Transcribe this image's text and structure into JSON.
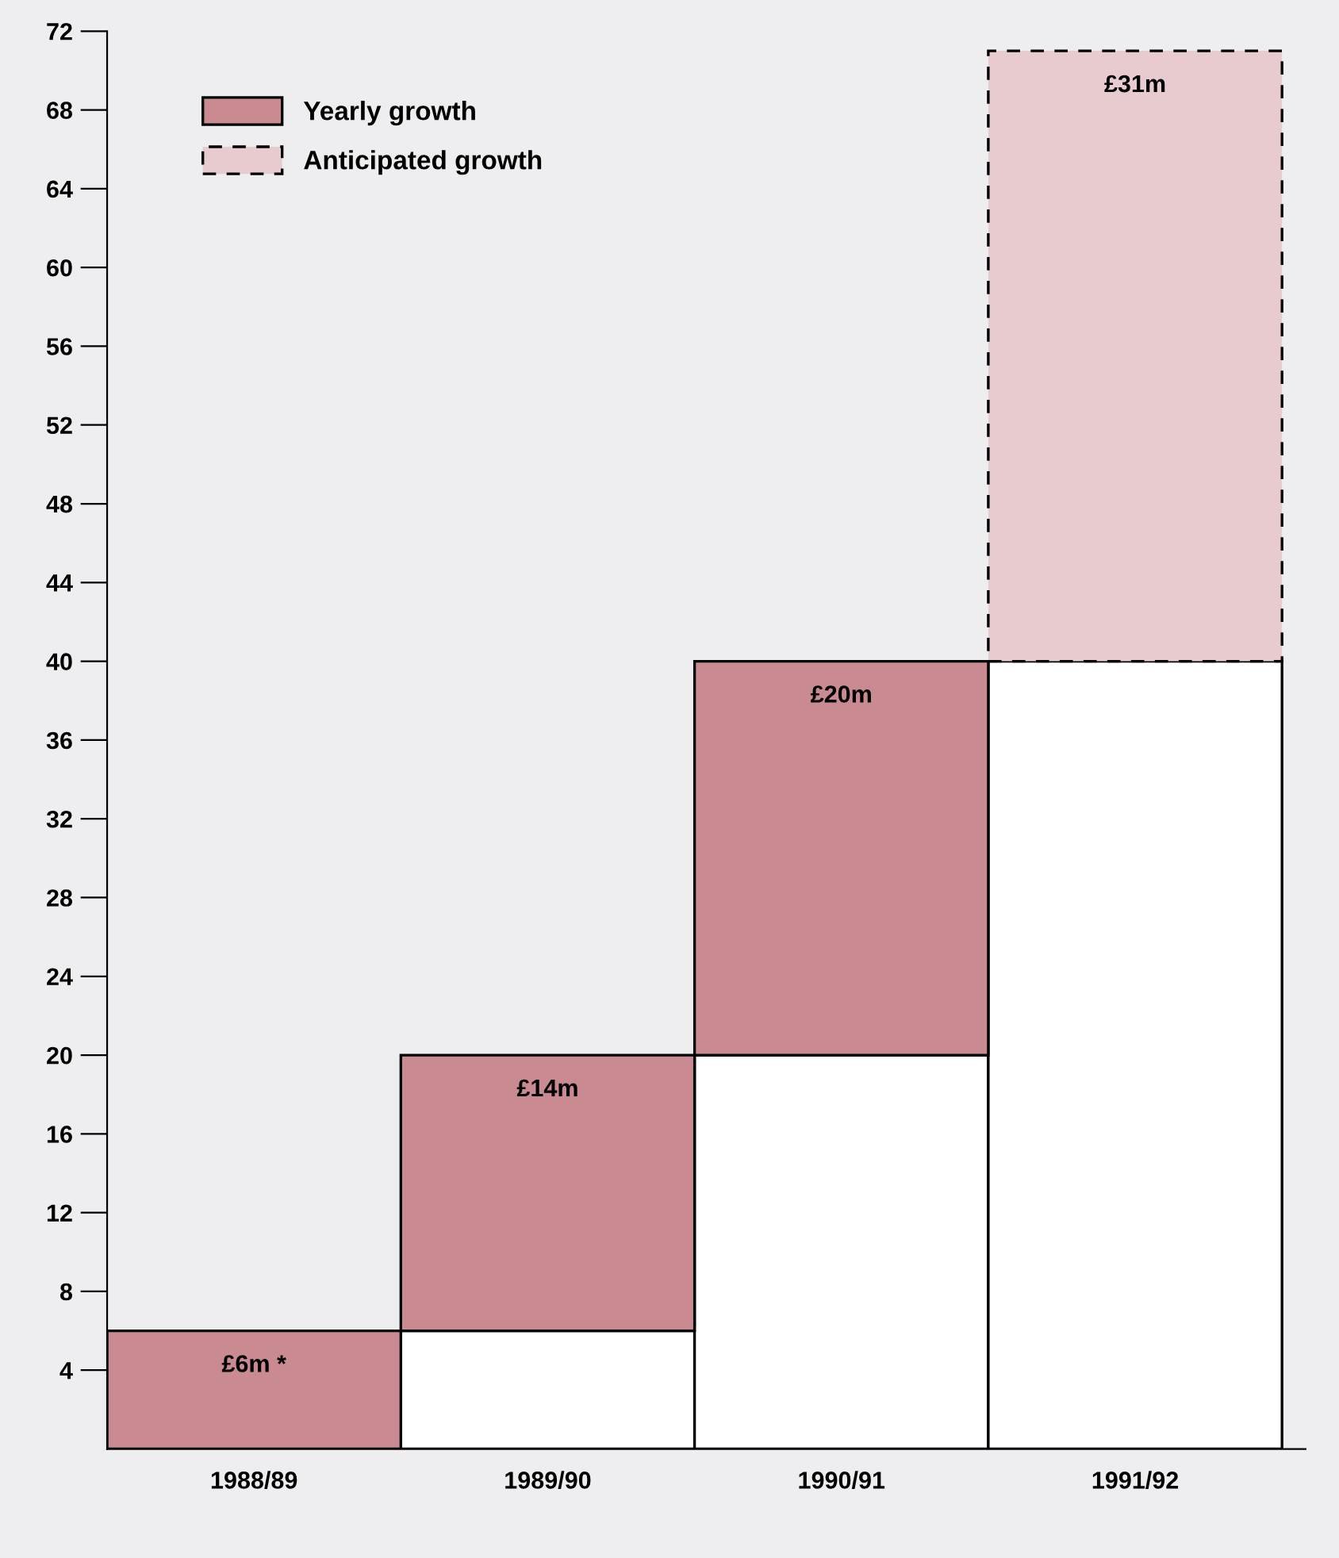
{
  "chart_data": {
    "type": "bar",
    "stacked": true,
    "categories": [
      "1988/89",
      "1989/90",
      "1990/91",
      "1991/92"
    ],
    "series": [
      {
        "color": "#ffffff",
        "values": [
          0,
          6,
          20,
          40
        ]
      },
      {
        "name": "Yearly growth",
        "color": "#c98a91",
        "values": [
          6,
          14,
          20,
          null
        ],
        "value_labels": [
          "£6m *",
          "£14m",
          "£20m",
          null
        ]
      },
      {
        "name": "Anticipated growth",
        "color": "#e8cbcf",
        "values": [
          null,
          null,
          null,
          31
        ],
        "value_labels": [
          null,
          null,
          null,
          "£31m"
        ],
        "line_style": "dashed"
      }
    ],
    "ylim": [
      0,
      72
    ],
    "yticks": [
      4,
      8,
      12,
      16,
      20,
      24,
      28,
      32,
      36,
      40,
      44,
      48,
      52,
      56,
      60,
      64,
      68,
      72
    ],
    "grid": false,
    "legend": "top left"
  }
}
